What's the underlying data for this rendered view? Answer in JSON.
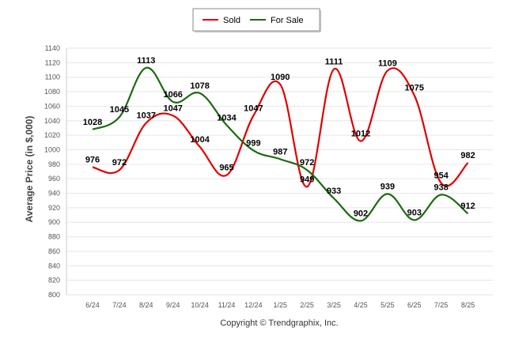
{
  "chart_data": {
    "type": "line",
    "categories": [
      "6/24",
      "7/24",
      "8/24",
      "9/24",
      "10/24",
      "11/24",
      "12/24",
      "1/25",
      "2/25",
      "3/25",
      "4/25",
      "5/25",
      "6/25",
      "7/25",
      "8/25"
    ],
    "series": [
      {
        "name": "Sold",
        "color": "#e00000",
        "values": [
          976,
          972,
          1037,
          1047,
          1004,
          965,
          1047,
          1090,
          949,
          1111,
          1012,
          1109,
          1075,
          954,
          982
        ]
      },
      {
        "name": "For Sale",
        "color": "#1a6b0f",
        "values": [
          1028,
          1045,
          1113,
          1066,
          1078,
          1034,
          999,
          987,
          972,
          933,
          902,
          939,
          903,
          938,
          912
        ]
      }
    ],
    "xlabel": "",
    "ylabel": "Average Price (in $,000)",
    "ylim": [
      800,
      1140
    ],
    "ytick_step": 20,
    "grid": true,
    "legend_position": "top-center",
    "footer": "Copyright © Trendgraphix, Inc."
  }
}
